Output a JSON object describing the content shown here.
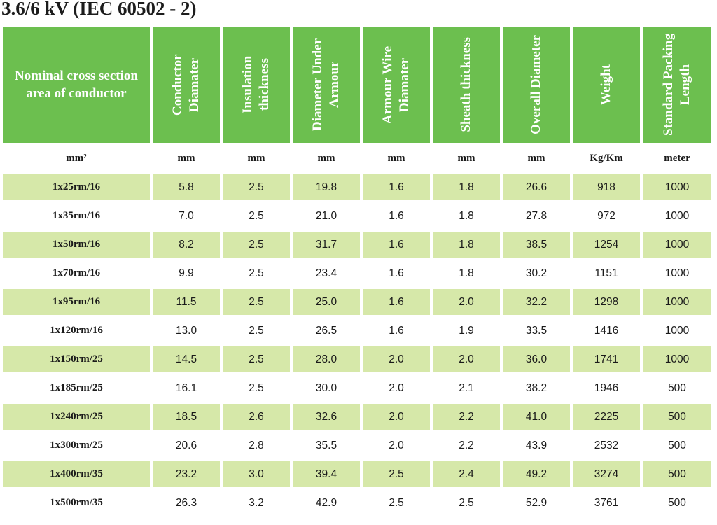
{
  "title": "3.6/6 kV (IEC 60502 - 2)",
  "headers": [
    "Nominal cross section area of conductor",
    "Conductor Diamater",
    "Insulation thickness",
    "Diameter Under Armour",
    "Armour Wire Diamater",
    "Sheath thickness",
    "Overall Diameter",
    "Weight",
    "Standard Packing Length"
  ],
  "units": [
    "mm²",
    "mm",
    "mm",
    "mm",
    "mm",
    "mm",
    "mm",
    "Kg/Km",
    "meter"
  ],
  "colors": {
    "header_bg": "#6cbf4f",
    "row_shaded": "#d6e8a9",
    "row_plain": "#ffffff"
  },
  "rows": [
    [
      "1x25rm/16",
      "5.8",
      "2.5",
      "19.8",
      "1.6",
      "1.8",
      "26.6",
      "918",
      "1000"
    ],
    [
      "1x35rm/16",
      "7.0",
      "2.5",
      "21.0",
      "1.6",
      "1.8",
      "27.8",
      "972",
      "1000"
    ],
    [
      "1x50rm/16",
      "8.2",
      "2.5",
      "31.7",
      "1.6",
      "1.8",
      "38.5",
      "1254",
      "1000"
    ],
    [
      "1x70rm/16",
      "9.9",
      "2.5",
      "23.4",
      "1.6",
      "1.8",
      "30.2",
      "1151",
      "1000"
    ],
    [
      "1x95rm/16",
      "11.5",
      "2.5",
      "25.0",
      "1.6",
      "2.0",
      "32.2",
      "1298",
      "1000"
    ],
    [
      "1x120rm/16",
      "13.0",
      "2.5",
      "26.5",
      "1.6",
      "1.9",
      "33.5",
      "1416",
      "1000"
    ],
    [
      "1x150rm/25",
      "14.5",
      "2.5",
      "28.0",
      "2.0",
      "2.0",
      "36.0",
      "1741",
      "1000"
    ],
    [
      "1x185rm/25",
      "16.1",
      "2.5",
      "30.0",
      "2.0",
      "2.1",
      "38.2",
      "1946",
      "500"
    ],
    [
      "1x240rm/25",
      "18.5",
      "2.6",
      "32.6",
      "2.0",
      "2.2",
      "41.0",
      "2225",
      "500"
    ],
    [
      "1x300rm/25",
      "20.6",
      "2.8",
      "35.5",
      "2.0",
      "2.2",
      "43.9",
      "2532",
      "500"
    ],
    [
      "1x400rm/35",
      "23.2",
      "3.0",
      "39.4",
      "2.5",
      "2.4",
      "49.2",
      "3274",
      "500"
    ],
    [
      "1x500rm/35",
      "26.3",
      "3.2",
      "42.9",
      "2.5",
      "2.5",
      "52.9",
      "3761",
      "500"
    ]
  ]
}
